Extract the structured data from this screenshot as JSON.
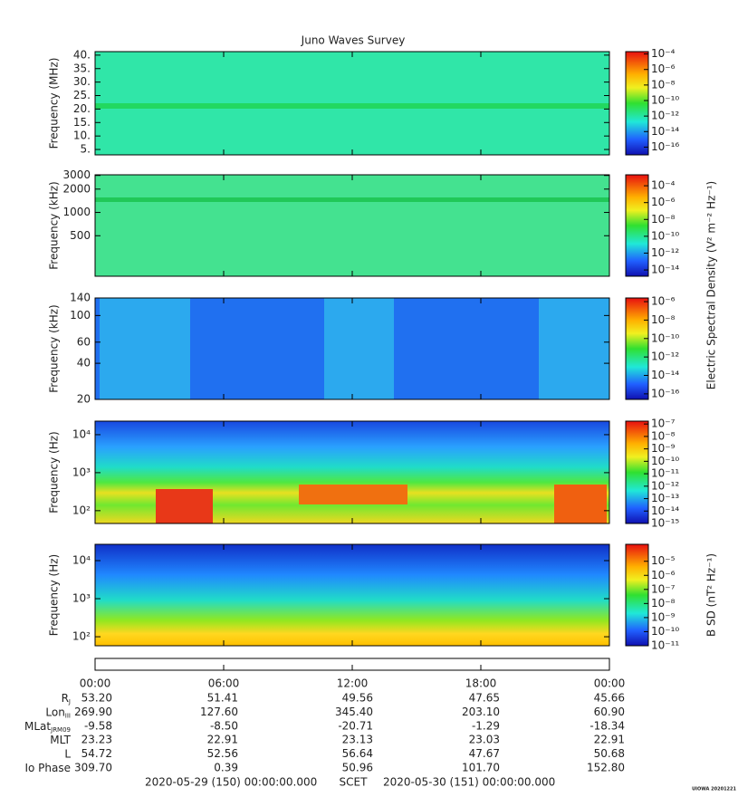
{
  "title": "Juno Waves Survey",
  "chart_data": [
    {
      "type": "spectrogram",
      "ylabel": "Frequency (MHz)",
      "log": false,
      "ylim": [
        3,
        41.3
      ],
      "yticks": [
        {
          "value": 40,
          "label": "40."
        },
        {
          "value": 35,
          "label": "35."
        },
        {
          "value": 30,
          "label": "30."
        },
        {
          "value": 25,
          "label": "25."
        },
        {
          "value": 20,
          "label": "20."
        },
        {
          "value": 15,
          "label": "15."
        },
        {
          "value": 10,
          "label": "10."
        },
        {
          "value": 5,
          "label": "5."
        }
      ],
      "colorbar": {
        "log": true,
        "lim": [
          1e-17,
          0.0002
        ],
        "ticks": [
          {
            "value": 0.0001,
            "label": "10⁻⁴"
          },
          {
            "value": 1e-06,
            "label": "10⁻⁶"
          },
          {
            "value": 1e-08,
            "label": "10⁻⁸"
          },
          {
            "value": 1e-10,
            "label": "10⁻¹⁰"
          },
          {
            "value": 1e-12,
            "label": "10⁻¹²"
          },
          {
            "value": 1e-14,
            "label": "10⁻¹⁴"
          },
          {
            "value": 1e-16,
            "label": "10⁻¹⁶"
          }
        ]
      }
    },
    {
      "type": "spectrogram",
      "ylabel": "Frequency (kHz)",
      "log": true,
      "ylim": [
        150,
        3060
      ],
      "yticks": [
        3000,
        2000,
        1000,
        500
      ],
      "colorbar": {
        "label": "Electric Spectral Density (V² m⁻² Hz⁻¹)",
        "log": true,
        "lim": [
          1.8e-15,
          0.002
        ],
        "ticks": [
          {
            "value": 0.0001,
            "label": "10⁻⁴"
          },
          {
            "value": 1e-06,
            "label": "10⁻⁶"
          },
          {
            "value": 1e-08,
            "label": "10⁻⁸"
          },
          {
            "value": 1e-10,
            "label": "10⁻¹⁰"
          },
          {
            "value": 1e-12,
            "label": "10⁻¹²"
          },
          {
            "value": 1e-14,
            "label": "10⁻¹⁴"
          }
        ]
      }
    },
    {
      "type": "spectrogram",
      "ylabel": "Frequency (kHz)",
      "log": true,
      "ylim": [
        20,
        140
      ],
      "yticks": [
        140,
        100,
        60,
        40,
        20
      ],
      "colorbar": {
        "log": true,
        "lim": [
          2.5e-17,
          2.5e-06
        ],
        "ticks": [
          {
            "value": 1e-06,
            "label": "10⁻⁶"
          },
          {
            "value": 1e-08,
            "label": "10⁻⁸"
          },
          {
            "value": 1e-10,
            "label": "10⁻¹⁰"
          },
          {
            "value": 1e-12,
            "label": "10⁻¹²"
          },
          {
            "value": 1e-14,
            "label": "10⁻¹⁴"
          },
          {
            "value": 1e-16,
            "label": "10⁻¹⁶"
          }
        ]
      }
    },
    {
      "type": "spectrogram",
      "ylabel": "Frequency (Hz)",
      "log": true,
      "ylim": [
        46,
        22700
      ],
      "yticks": [
        {
          "value": 10000,
          "label": "10⁴"
        },
        {
          "value": 1000,
          "label": "10³"
        },
        {
          "value": 100,
          "label": "10²"
        }
      ],
      "colorbar": {
        "log": true,
        "lim": [
          1e-15,
          1.7e-07
        ],
        "ticks": [
          {
            "value": 1e-07,
            "label": "10⁻⁷"
          },
          {
            "value": 1e-08,
            "label": "10⁻⁸"
          },
          {
            "value": 1e-09,
            "label": "10⁻⁹"
          },
          {
            "value": 1e-10,
            "label": "10⁻¹⁰"
          },
          {
            "value": 1e-11,
            "label": "10⁻¹¹"
          },
          {
            "value": 1e-12,
            "label": "10⁻¹²"
          },
          {
            "value": 1e-13,
            "label": "10⁻¹³"
          },
          {
            "value": 1e-14,
            "label": "10⁻¹⁴"
          },
          {
            "value": 1e-15,
            "label": "10⁻¹⁵"
          }
        ]
      }
    },
    {
      "type": "spectrogram",
      "ylabel": "Frequency (Hz)",
      "log": true,
      "ylim": [
        58,
        26800
      ],
      "yticks": [
        {
          "value": 10000,
          "label": "10⁴"
        },
        {
          "value": 1000,
          "label": "10³"
        },
        {
          "value": 100,
          "label": "10²"
        }
      ],
      "colorbar": {
        "label": "B SD (nT² Hz⁻¹)",
        "log": true,
        "lim": [
          1e-11,
          0.00016
        ],
        "ticks": [
          {
            "value": 1e-05,
            "label": "10⁻⁵"
          },
          {
            "value": 1e-06,
            "label": "10⁻⁶"
          },
          {
            "value": 1e-07,
            "label": "10⁻⁷"
          },
          {
            "value": 1e-08,
            "label": "10⁻⁸"
          },
          {
            "value": 1e-09,
            "label": "10⁻⁹"
          },
          {
            "value": 1e-10,
            "label": "10⁻¹⁰"
          },
          {
            "value": 1e-11,
            "label": "10⁻¹¹"
          }
        ]
      }
    }
  ],
  "time_axis": {
    "xlim": [
      0,
      24
    ],
    "xticks": [
      {
        "value": 0,
        "label": "00:00"
      },
      {
        "value": 6,
        "label": "06:00"
      },
      {
        "value": 12,
        "label": "12:00"
      },
      {
        "value": 18,
        "label": "18:00"
      },
      {
        "value": 24,
        "label": "00:00"
      }
    ]
  },
  "ephemeris": {
    "rows": [
      {
        "label": "R",
        "sub": "J",
        "values": [
          "53.20",
          "51.41",
          "49.56",
          "47.65",
          "45.66"
        ]
      },
      {
        "label": "Lon",
        "sub": "III",
        "values": [
          "269.90",
          "127.60",
          "345.40",
          "203.10",
          "60.90"
        ]
      },
      {
        "label": "MLat",
        "sub": "JRM09",
        "values": [
          "-9.58",
          "-8.50",
          "-20.71",
          "-1.29",
          "-18.34"
        ]
      },
      {
        "label": "MLT",
        "values": [
          "23.23",
          "22.91",
          "23.13",
          "23.03",
          "22.91"
        ]
      },
      {
        "label": "L",
        "values": [
          "54.72",
          "52.56",
          "56.64",
          "47.67",
          "50.68"
        ]
      },
      {
        "label": "Io Phase",
        "values": [
          "309.70",
          "0.39",
          "50.96",
          "101.70",
          "152.80"
        ]
      }
    ]
  },
  "footer": {
    "start": "2020-05-29 (150) 00:00:00.000",
    "center": "SCET",
    "end": "2020-05-30 (151) 00:00:00.000",
    "stamp": "UIOWA 20201221"
  }
}
